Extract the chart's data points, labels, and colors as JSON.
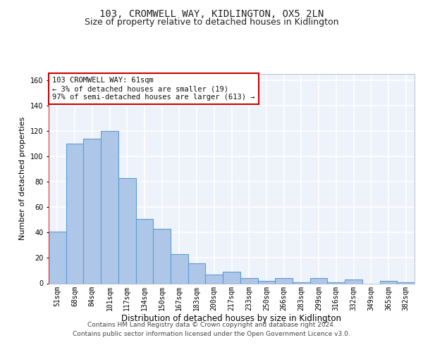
{
  "title": "103, CROMWELL WAY, KIDLINGTON, OX5 2LN",
  "subtitle": "Size of property relative to detached houses in Kidlington",
  "xlabel": "Distribution of detached houses by size in Kidlington",
  "ylabel": "Number of detached properties",
  "categories": [
    "51sqm",
    "68sqm",
    "84sqm",
    "101sqm",
    "117sqm",
    "134sqm",
    "150sqm",
    "167sqm",
    "183sqm",
    "200sqm",
    "217sqm",
    "233sqm",
    "250sqm",
    "266sqm",
    "283sqm",
    "299sqm",
    "316sqm",
    "332sqm",
    "349sqm",
    "365sqm",
    "382sqm"
  ],
  "values": [
    41,
    110,
    114,
    120,
    83,
    51,
    43,
    23,
    16,
    7,
    9,
    4,
    2,
    4,
    1,
    4,
    1,
    3,
    0,
    2,
    1
  ],
  "bar_color": "#aec6e8",
  "bar_edge_color": "#5a9fd4",
  "bar_edge_width": 0.8,
  "property_line_color": "#cc0000",
  "annotation_text": "103 CROMWELL WAY: 61sqm\n← 3% of detached houses are smaller (19)\n97% of semi-detached houses are larger (613) →",
  "annotation_box_color": "#cc0000",
  "ylim": [
    0,
    165
  ],
  "yticks": [
    0,
    20,
    40,
    60,
    80,
    100,
    120,
    140,
    160
  ],
  "background_color": "#eef2fa",
  "grid_color": "#ffffff",
  "footer": "Contains HM Land Registry data © Crown copyright and database right 2024.\nContains public sector information licensed under the Open Government Licence v3.0.",
  "title_fontsize": 10,
  "subtitle_fontsize": 9,
  "xlabel_fontsize": 8.5,
  "ylabel_fontsize": 8,
  "tick_fontsize": 7,
  "annotation_fontsize": 7.5
}
